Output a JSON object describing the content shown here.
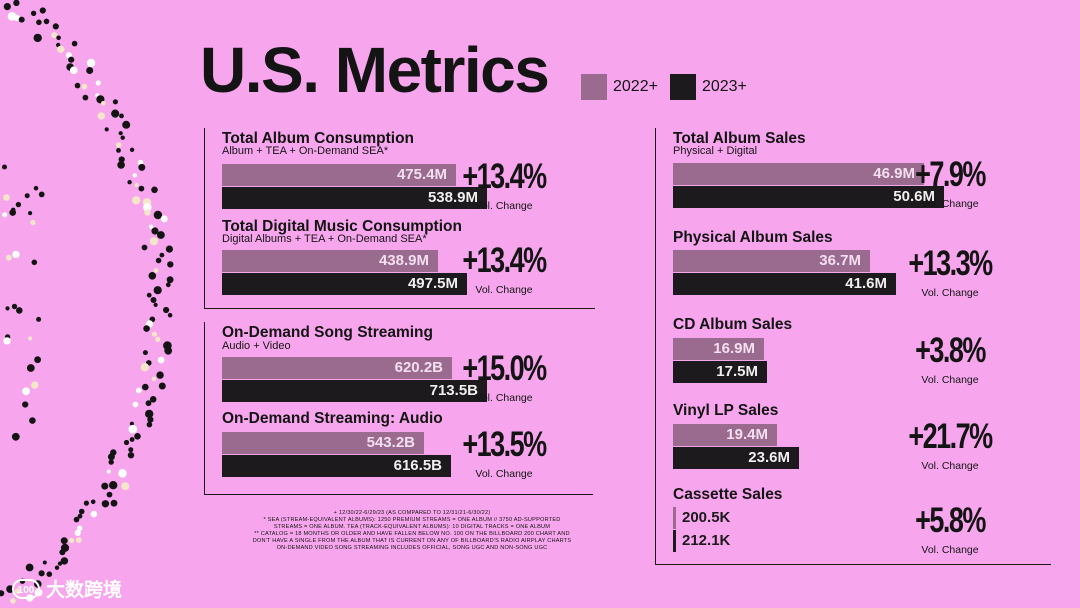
{
  "header": {
    "title": "U.S. Metrics"
  },
  "legend": [
    {
      "label": "2022+",
      "color": "#9a6a8f"
    },
    {
      "label": "2023+",
      "color": "#1c1a1c"
    }
  ],
  "chart_data": {
    "type": "bar",
    "orientation": "horizontal",
    "title": "U.S. Metrics",
    "series_names": [
      "2022+",
      "2023+"
    ],
    "change_label": "Vol. Change",
    "metrics": [
      {
        "title": "Total Album Consumption",
        "subtitle": "Album + TEA + On-Demand SEA*",
        "v2022": 475.4,
        "v2023": 538.9,
        "label2022": "475.4M",
        "label2023": "538.9M",
        "unit": "M",
        "change": "+13.4%"
      },
      {
        "title": "Total Digital Music Consumption",
        "subtitle": "Digital Albums + TEA + On-Demand SEA*",
        "v2022": 438.9,
        "v2023": 497.5,
        "label2022": "438.9M",
        "label2023": "497.5M",
        "unit": "M",
        "change": "+13.4%"
      },
      {
        "title": "On-Demand Song Streaming",
        "subtitle": "Audio + Video",
        "v2022": 620.2,
        "v2023": 713.5,
        "label2022": "620.2B",
        "label2023": "713.5B",
        "unit": "B",
        "change": "+15.0%"
      },
      {
        "title": "On-Demand Streaming: Audio",
        "subtitle": "",
        "v2022": 543.2,
        "v2023": 616.5,
        "label2022": "543.2B",
        "label2023": "616.5B",
        "unit": "B",
        "change": "+13.5%"
      },
      {
        "title": "Total Album Sales",
        "subtitle": "Physical + Digital",
        "v2022": 46.9,
        "v2023": 50.6,
        "label2022": "46.9M",
        "label2023": "50.6M",
        "unit": "M",
        "change": "+7.9%"
      },
      {
        "title": "Physical Album Sales",
        "subtitle": "",
        "v2022": 36.7,
        "v2023": 41.6,
        "label2022": "36.7M",
        "label2023": "41.6M",
        "unit": "M",
        "change": "+13.3%"
      },
      {
        "title": "CD Album Sales",
        "subtitle": "",
        "v2022": 16.9,
        "v2023": 17.5,
        "label2022": "16.9M",
        "label2023": "17.5M",
        "unit": "M",
        "change": "+3.8%"
      },
      {
        "title": "Vinyl LP Sales",
        "subtitle": "",
        "v2022": 19.4,
        "v2023": 23.6,
        "label2022": "19.4M",
        "label2023": "23.6M",
        "unit": "M",
        "change": "+21.7%"
      },
      {
        "title": "Cassette Sales",
        "subtitle": "",
        "v2022": 0.2005,
        "v2023": 0.2121,
        "label2022": "200.5K",
        "label2023": "212.1K",
        "unit": "M",
        "change": "+5.8%"
      }
    ]
  },
  "footnotes": [
    "+ 12/30/22-6/29/23 (as compared to 12/31/21-6/30/22)",
    "* SEA (Stream-Equivalent Albums): 1250 premium streams = one album // 3750 ad-supported",
    "streams = one album. TEA (Track-Equivalent Albums): 10 digital tracks = one album",
    "** Catalog = 18 months or older and have fallen below No. 100 on the Billboard 200 chart and",
    "don't have a single from the album that is current on any of Billboard's radio airplay charts",
    "On-demand video song streaming includes official, song UGC and non-song UGC"
  ],
  "watermark": {
    "mark": "100",
    "text": "大数跨境"
  }
}
